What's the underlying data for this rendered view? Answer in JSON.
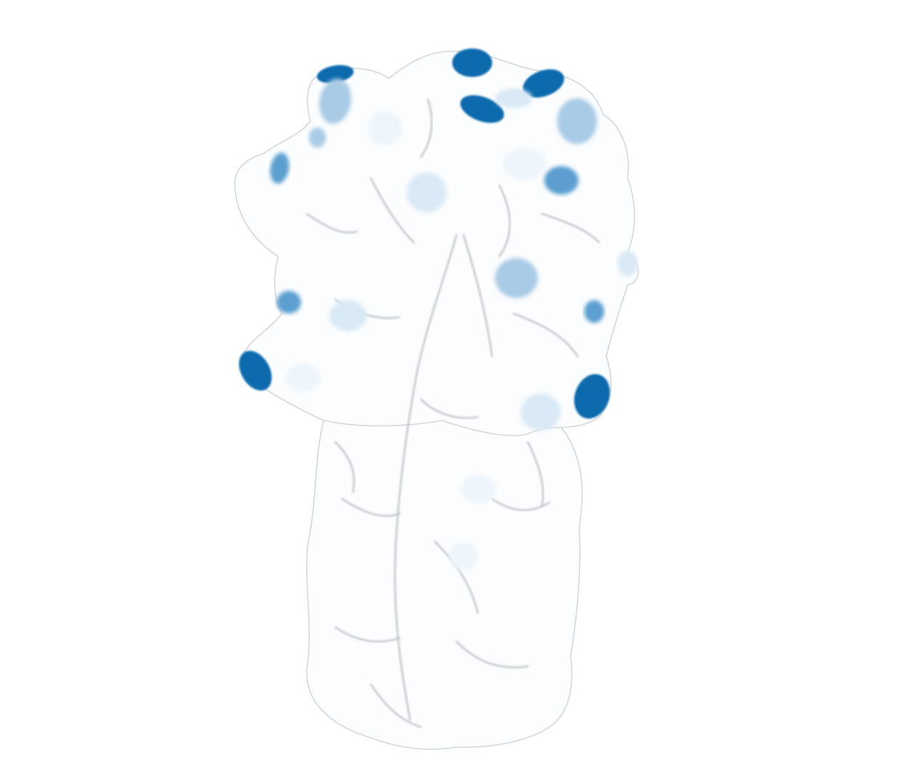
{
  "figure": {
    "kind": "protein-surface-render",
    "colors": {
      "background": "#ffffff",
      "surface": "#fbfdfe",
      "surface_edge": "#d3d6d9",
      "groove": "#bfc4c8",
      "tint_faint": "#eef5fb",
      "tint_light": "#d9e9f5",
      "tint_medium": "#a9cbe6",
      "tint_strong": "#5b9fd0",
      "tint_max": "#0a6aad"
    }
  }
}
